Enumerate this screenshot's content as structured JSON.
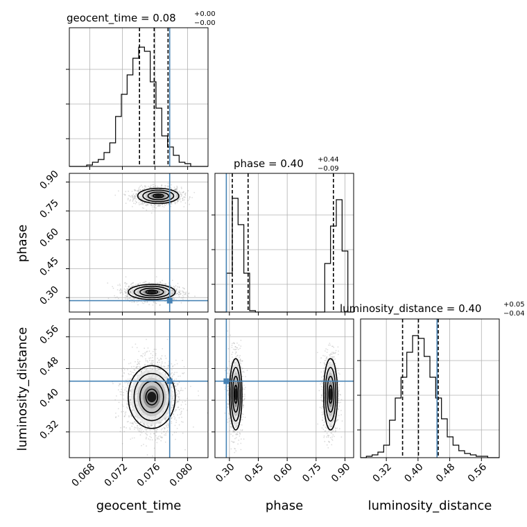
{
  "chart_data": {
    "type": "corner",
    "parameters": [
      "geocent_time",
      "phase",
      "luminosity_distance"
    ],
    "titles": {
      "geocent_time": {
        "name": "geocent_time",
        "value": "0.08",
        "plus": "+0.00",
        "minus": "−0.00"
      },
      "phase": {
        "name": "phase",
        "value": "0.40",
        "plus": "+0.44",
        "minus": "−0.09"
      },
      "luminosity_distance": {
        "name": "luminosity_distance",
        "value": "0.40",
        "plus": "+0.05",
        "minus": "−0.04"
      }
    },
    "truths": {
      "geocent_time": 0.0778,
      "phase": 0.284,
      "luminosity_distance": 0.448
    },
    "ranges": {
      "geocent_time": [
        0.0655,
        0.0825
      ],
      "phase": [
        0.225,
        0.945
      ],
      "luminosity_distance": [
        0.255,
        0.605
      ]
    },
    "ticks": {
      "geocent_time": {
        "values": [
          0.068,
          0.072,
          0.076,
          0.08
        ],
        "labels": [
          "0.068",
          "0.072",
          "0.076",
          "0.080"
        ]
      },
      "phase": {
        "values": [
          0.3,
          0.45,
          0.6,
          0.75,
          0.9
        ],
        "labels": [
          "0.30",
          "0.45",
          "0.60",
          "0.75",
          "0.90"
        ]
      },
      "luminosity_distance": {
        "values": [
          0.32,
          0.4,
          0.48,
          0.56
        ],
        "labels": [
          "0.32",
          "0.40",
          "0.48",
          "0.56"
        ]
      }
    },
    "quantiles": {
      "geocent_time": [
        0.0741,
        0.0759,
        0.0776
      ],
      "phase": [
        0.315,
        0.397,
        0.84
      ],
      "luminosity_distance": [
        0.361,
        0.401,
        0.451
      ]
    },
    "histograms": {
      "geocent_time": {
        "min": 0.0655,
        "max": 0.0825,
        "counts": [
          0,
          0,
          0,
          0.01,
          0.03,
          0.05,
          0.1,
          0.17,
          0.36,
          0.52,
          0.66,
          0.78,
          0.86,
          0.83,
          0.61,
          0.42,
          0.22,
          0.14,
          0.08,
          0.03,
          0.02,
          0,
          0,
          0
        ]
      },
      "phase": {
        "min": 0.225,
        "max": 0.945,
        "counts": [
          0,
          0,
          0.28,
          0.82,
          0.63,
          0.28,
          0.01,
          0,
          0,
          0,
          0,
          0,
          0,
          0,
          0,
          0,
          0,
          0,
          0,
          0.35,
          0.62,
          0.81,
          0.44,
          0
        ]
      },
      "luminosity_distance": {
        "min": 0.255,
        "max": 0.605,
        "counts": [
          0,
          0.01,
          0.02,
          0.04,
          0.09,
          0.27,
          0.43,
          0.58,
          0.76,
          0.88,
          0.86,
          0.73,
          0.58,
          0.43,
          0.28,
          0.15,
          0.09,
          0.05,
          0.03,
          0.02,
          0.01,
          0.01,
          0,
          0
        ]
      }
    },
    "blobs": {
      "phase_vs_geocent_time": [
        {
          "cx": 0.0764,
          "cy": 0.828,
          "sx": 0.0014,
          "sy": 0.022,
          "n": 1400
        },
        {
          "cx": 0.0756,
          "cy": 0.329,
          "sx": 0.0016,
          "sy": 0.022,
          "n": 1400
        }
      ],
      "luminosity_distance_vs_geocent_time": [
        {
          "cx": 0.0756,
          "cy": 0.408,
          "sx": 0.0016,
          "sy": 0.044,
          "n": 2200
        }
      ],
      "luminosity_distance_vs_phase": [
        {
          "cx": 0.333,
          "cy": 0.415,
          "sx": 0.018,
          "sy": 0.05,
          "n": 1100
        },
        {
          "cx": 0.825,
          "cy": 0.415,
          "sx": 0.02,
          "sy": 0.05,
          "n": 1100
        }
      ]
    },
    "contour_levels": [
      0.5,
      1.0,
      1.5,
      2.0
    ]
  }
}
